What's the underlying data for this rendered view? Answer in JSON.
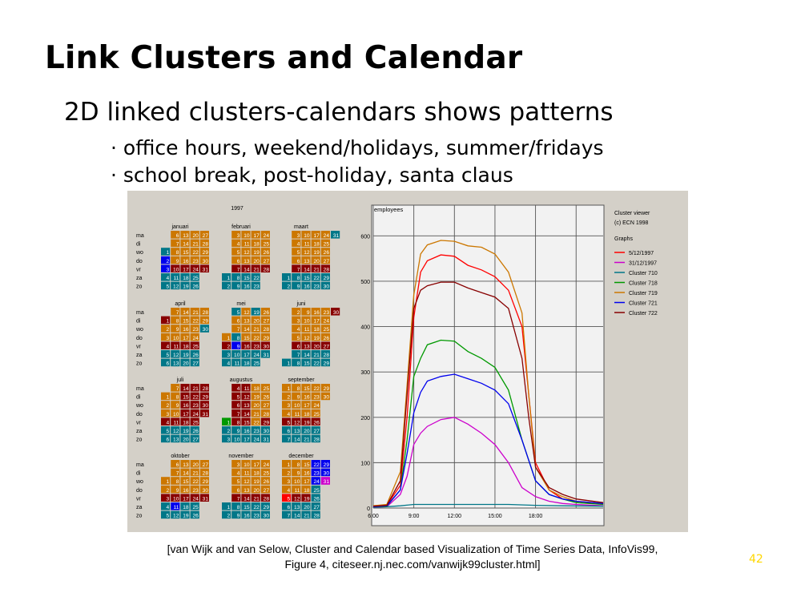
{
  "slide": {
    "title": "Link Clusters and Calendar",
    "subtitle": "2D linked clusters-calendars shows patterns",
    "bullets": [
      "office hours, weekend/holidays, summer/fridays",
      "school break, post-holiday, santa claus"
    ],
    "caption_line1": "[van Wijk and van Selow, Cluster and Calendar based Visualization of Time Series Data, InfoVis99,",
    "caption_line2": "Figure 4, citeseer.nj.nec.com/vanwijk99cluster.html]",
    "page_number": "42"
  },
  "calendar": {
    "year": "1997",
    "day_labels": [
      "ma",
      "di",
      "wo",
      "do",
      "vr",
      "za",
      "zo"
    ],
    "months": [
      {
        "name": "januari",
        "start": 2
      },
      {
        "name": "februari",
        "start": 5
      },
      {
        "name": "maart",
        "start": 5
      },
      {
        "name": "april",
        "start": 1
      },
      {
        "name": "mei",
        "start": 3
      },
      {
        "name": "juni",
        "start": 6
      },
      {
        "name": "juli",
        "start": 1
      },
      {
        "name": "augustus",
        "start": 4
      },
      {
        "name": "september",
        "start": 0
      },
      {
        "name": "oktober",
        "start": 2
      },
      {
        "name": "november",
        "start": 5
      },
      {
        "name": "december",
        "start": 0
      }
    ],
    "special_days": [
      {
        "month": 0,
        "day": 1,
        "cluster": "Cluster 710"
      },
      {
        "month": 0,
        "day": 2,
        "cluster": "Cluster 721"
      },
      {
        "month": 0,
        "day": 3,
        "cluster": "Cluster 721"
      },
      {
        "month": 2,
        "day": 31,
        "cluster": "Cluster 710"
      },
      {
        "month": 2,
        "day": 28,
        "cluster": "Cluster 722"
      },
      {
        "month": 3,
        "day": 1,
        "cluster": "Cluster 722"
      },
      {
        "month": 3,
        "day": 30,
        "cluster": "Cluster 710"
      },
      {
        "month": 4,
        "day": 5,
        "cluster": "Cluster 710"
      },
      {
        "month": 4,
        "day": 8,
        "cluster": "Cluster 710"
      },
      {
        "month": 4,
        "day": 9,
        "cluster": "Cluster 721"
      },
      {
        "month": 4,
        "day": 19,
        "cluster": "Cluster 710"
      },
      {
        "month": 5,
        "day": 30,
        "cluster": "Cluster 722"
      },
      {
        "month": 7,
        "day": 1,
        "cluster": "Cluster 718"
      },
      {
        "month": 7,
        "day": 22,
        "cluster": "Cluster 719"
      },
      {
        "month": 7,
        "day": 25,
        "cluster": "Cluster 719"
      },
      {
        "month": 7,
        "day": 28,
        "cluster": "Cluster 719"
      },
      {
        "month": 9,
        "day": 3,
        "cluster": "Cluster 722"
      },
      {
        "month": 9,
        "day": 11,
        "cluster": "Cluster 721"
      },
      {
        "month": 11,
        "day": 5,
        "cluster": "5/12/1997"
      },
      {
        "month": 11,
        "day": 25,
        "cluster": "Cluster 710"
      },
      {
        "month": 11,
        "day": 22,
        "cluster": "Cluster 721"
      },
      {
        "month": 11,
        "day": 23,
        "cluster": "Cluster 721"
      },
      {
        "month": 11,
        "day": 24,
        "cluster": "Cluster 721"
      },
      {
        "month": 11,
        "day": 31,
        "cluster": "31/12/1997"
      },
      {
        "month": 11,
        "day": 26,
        "cluster": "Cluster 710"
      }
    ]
  },
  "viewer": {
    "title": "Cluster viewer",
    "copyright": "(c) ECN 1998",
    "graphs_label": "Graphs"
  },
  "chart_data": {
    "type": "line",
    "ylabel": "employees",
    "xlabel": "",
    "ylim": [
      0,
      650
    ],
    "xlim": [
      6.0,
      23.0
    ],
    "yticks": [
      0,
      100,
      200,
      300,
      400,
      500,
      600
    ],
    "xticks": [
      "6:00",
      "9:00",
      "12:00",
      "15:00",
      "18:00"
    ],
    "grid": true,
    "legend_position": "right",
    "series": [
      {
        "name": "5/12/1997",
        "color": "#ff0000",
        "values": [
          [
            6,
            5
          ],
          [
            7,
            6
          ],
          [
            8,
            50
          ],
          [
            8.5,
            200
          ],
          [
            9,
            420
          ],
          [
            9.5,
            520
          ],
          [
            10,
            545
          ],
          [
            11,
            558
          ],
          [
            12,
            555
          ],
          [
            13,
            535
          ],
          [
            14,
            525
          ],
          [
            15,
            510
          ],
          [
            16,
            480
          ],
          [
            17,
            400
          ],
          [
            17.5,
            250
          ],
          [
            18,
            100
          ],
          [
            19,
            40
          ],
          [
            20,
            20
          ],
          [
            21,
            15
          ],
          [
            22,
            12
          ],
          [
            23,
            10
          ]
        ]
      },
      {
        "name": "31/12/1997",
        "color": "#cc00cc",
        "values": [
          [
            6,
            2
          ],
          [
            7,
            3
          ],
          [
            8,
            30
          ],
          [
            8.5,
            70
          ],
          [
            9,
            140
          ],
          [
            9.5,
            165
          ],
          [
            10,
            180
          ],
          [
            11,
            195
          ],
          [
            12,
            200
          ],
          [
            13,
            185
          ],
          [
            14,
            165
          ],
          [
            15,
            140
          ],
          [
            16,
            100
          ],
          [
            17,
            45
          ],
          [
            18,
            25
          ],
          [
            19,
            15
          ],
          [
            20,
            10
          ],
          [
            21,
            8
          ],
          [
            23,
            5
          ]
        ]
      },
      {
        "name": "Cluster 710",
        "color": "#007788",
        "values": [
          [
            6,
            2
          ],
          [
            7,
            3
          ],
          [
            8,
            5
          ],
          [
            9,
            8
          ],
          [
            10,
            8
          ],
          [
            12,
            8
          ],
          [
            14,
            8
          ],
          [
            16,
            8
          ],
          [
            18,
            6
          ],
          [
            20,
            5
          ],
          [
            23,
            4
          ]
        ]
      },
      {
        "name": "Cluster 718",
        "color": "#009900",
        "values": [
          [
            6,
            3
          ],
          [
            7,
            4
          ],
          [
            8,
            40
          ],
          [
            8.5,
            150
          ],
          [
            9,
            290
          ],
          [
            9.5,
            330
          ],
          [
            10,
            360
          ],
          [
            11,
            370
          ],
          [
            12,
            368
          ],
          [
            13,
            345
          ],
          [
            14,
            330
          ],
          [
            15,
            310
          ],
          [
            16,
            260
          ],
          [
            17,
            150
          ],
          [
            18,
            60
          ],
          [
            19,
            30
          ],
          [
            20,
            20
          ],
          [
            21,
            12
          ],
          [
            23,
            8
          ]
        ]
      },
      {
        "name": "Cluster 719",
        "color": "#cc7700",
        "values": [
          [
            6,
            5
          ],
          [
            7,
            8
          ],
          [
            8,
            80
          ],
          [
            8.5,
            270
          ],
          [
            9,
            470
          ],
          [
            9.5,
            560
          ],
          [
            10,
            580
          ],
          [
            11,
            590
          ],
          [
            12,
            588
          ],
          [
            13,
            578
          ],
          [
            14,
            575
          ],
          [
            15,
            560
          ],
          [
            16,
            520
          ],
          [
            17,
            430
          ],
          [
            17.5,
            250
          ],
          [
            18,
            90
          ],
          [
            19,
            40
          ],
          [
            20,
            25
          ],
          [
            21,
            15
          ],
          [
            23,
            10
          ]
        ]
      },
      {
        "name": "Cluster 721",
        "color": "#0000ee",
        "values": [
          [
            6,
            3
          ],
          [
            7,
            5
          ],
          [
            8,
            40
          ],
          [
            8.5,
            120
          ],
          [
            9,
            210
          ],
          [
            9.5,
            255
          ],
          [
            10,
            280
          ],
          [
            11,
            290
          ],
          [
            12,
            295
          ],
          [
            13,
            285
          ],
          [
            14,
            275
          ],
          [
            15,
            260
          ],
          [
            16,
            230
          ],
          [
            17,
            150
          ],
          [
            18,
            60
          ],
          [
            19,
            30
          ],
          [
            20,
            20
          ],
          [
            21,
            15
          ],
          [
            23,
            10
          ]
        ]
      },
      {
        "name": "Cluster 722",
        "color": "#880000",
        "values": [
          [
            6,
            4
          ],
          [
            7,
            6
          ],
          [
            8,
            60
          ],
          [
            8.5,
            250
          ],
          [
            9,
            440
          ],
          [
            9.5,
            480
          ],
          [
            10,
            490
          ],
          [
            11,
            498
          ],
          [
            12,
            498
          ],
          [
            13,
            485
          ],
          [
            14,
            475
          ],
          [
            15,
            465
          ],
          [
            16,
            440
          ],
          [
            17,
            330
          ],
          [
            17.5,
            200
          ],
          [
            18,
            90
          ],
          [
            19,
            45
          ],
          [
            20,
            30
          ],
          [
            21,
            20
          ],
          [
            23,
            12
          ]
        ]
      }
    ]
  }
}
